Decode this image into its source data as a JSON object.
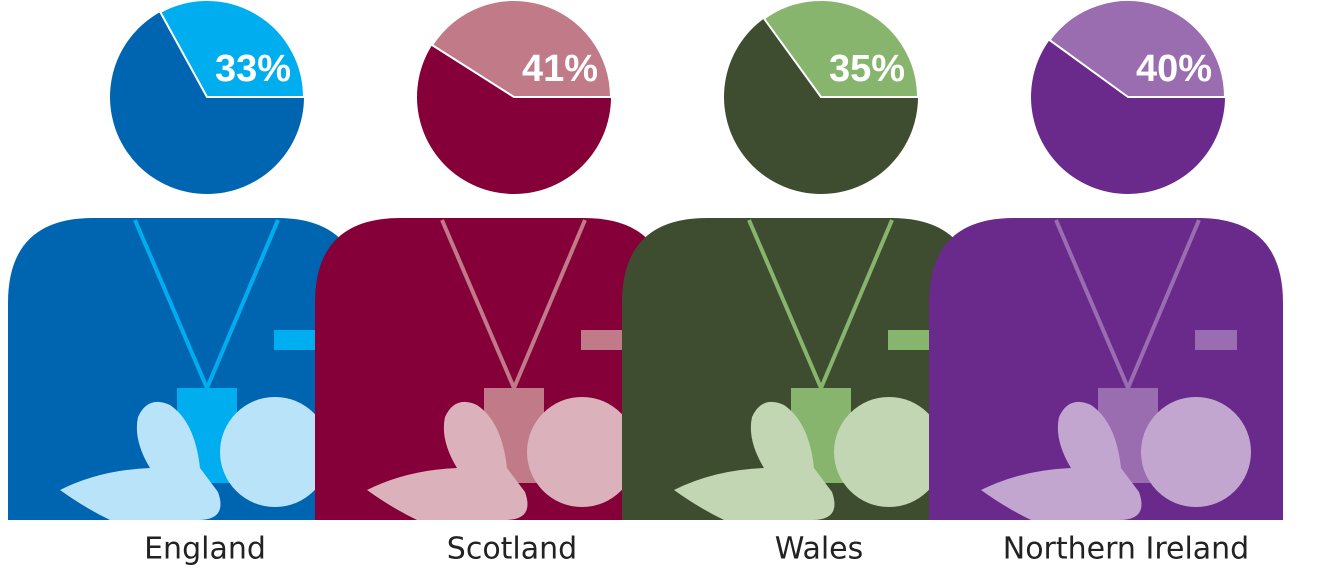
{
  "chart_data": [
    {
      "type": "pie",
      "title": "England",
      "values": [
        33
      ],
      "value_labels": [
        "33%"
      ],
      "color": "#00aeef"
    },
    {
      "type": "pie",
      "title": "Scotland",
      "values": [
        41
      ],
      "value_labels": [
        "41%"
      ],
      "color": "#c07a88"
    },
    {
      "type": "pie",
      "title": "Wales",
      "values": [
        35
      ],
      "value_labels": [
        "35%"
      ],
      "color": "#87b56e"
    },
    {
      "type": "pie",
      "title": "Northern Ireland",
      "values": [
        40
      ],
      "value_labels": [
        "40%"
      ],
      "color": "#9a6db0"
    }
  ]
}
